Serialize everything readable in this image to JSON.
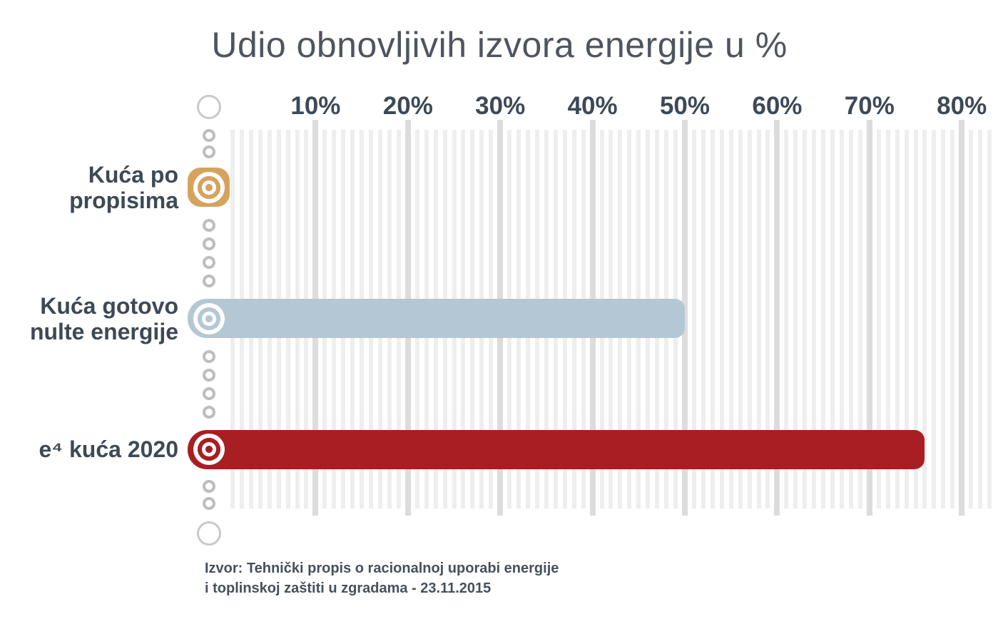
{
  "chart": {
    "title": "Udio obnovljivih izvora energije u %",
    "source_line1": "Izvor: Tehnički propis o racionalnoj uporabi energije",
    "source_line2": "i toplinskoj zaštiti u zgradama - 23.11.2015"
  },
  "chart_data": {
    "type": "bar",
    "orientation": "horizontal",
    "title": "Udio obnovljivih izvora energije u %",
    "xlabel": "",
    "ylabel": "",
    "categories": [
      "Kuća po propisima",
      "Kuća gotovo nulte energije",
      "e⁴ kuća 2020"
    ],
    "category_lines": [
      [
        "Kuća po",
        "propisima"
      ],
      [
        "Kuća gotovo",
        "nulte energije"
      ],
      [
        "e⁴ kuća 2020"
      ]
    ],
    "values": [
      0,
      50,
      76
    ],
    "bar_colors": [
      "#d6a35e",
      "#b4c7d5",
      "#a81e23"
    ],
    "x_ticks": [
      "10%",
      "20%",
      "30%",
      "40%",
      "50%",
      "60%",
      "70%",
      "80%"
    ],
    "x_tick_values": [
      10,
      20,
      30,
      40,
      50,
      60,
      70,
      80
    ],
    "xlim": [
      0,
      83
    ],
    "grid": "vertical pinstripe, minor every 1%, major every 10%",
    "legend": "none",
    "source": "Izvor: Tehnički propis o racionalnoj uporabi energije i toplinskoj zaštiti u zgradama - 23.11.2015"
  }
}
